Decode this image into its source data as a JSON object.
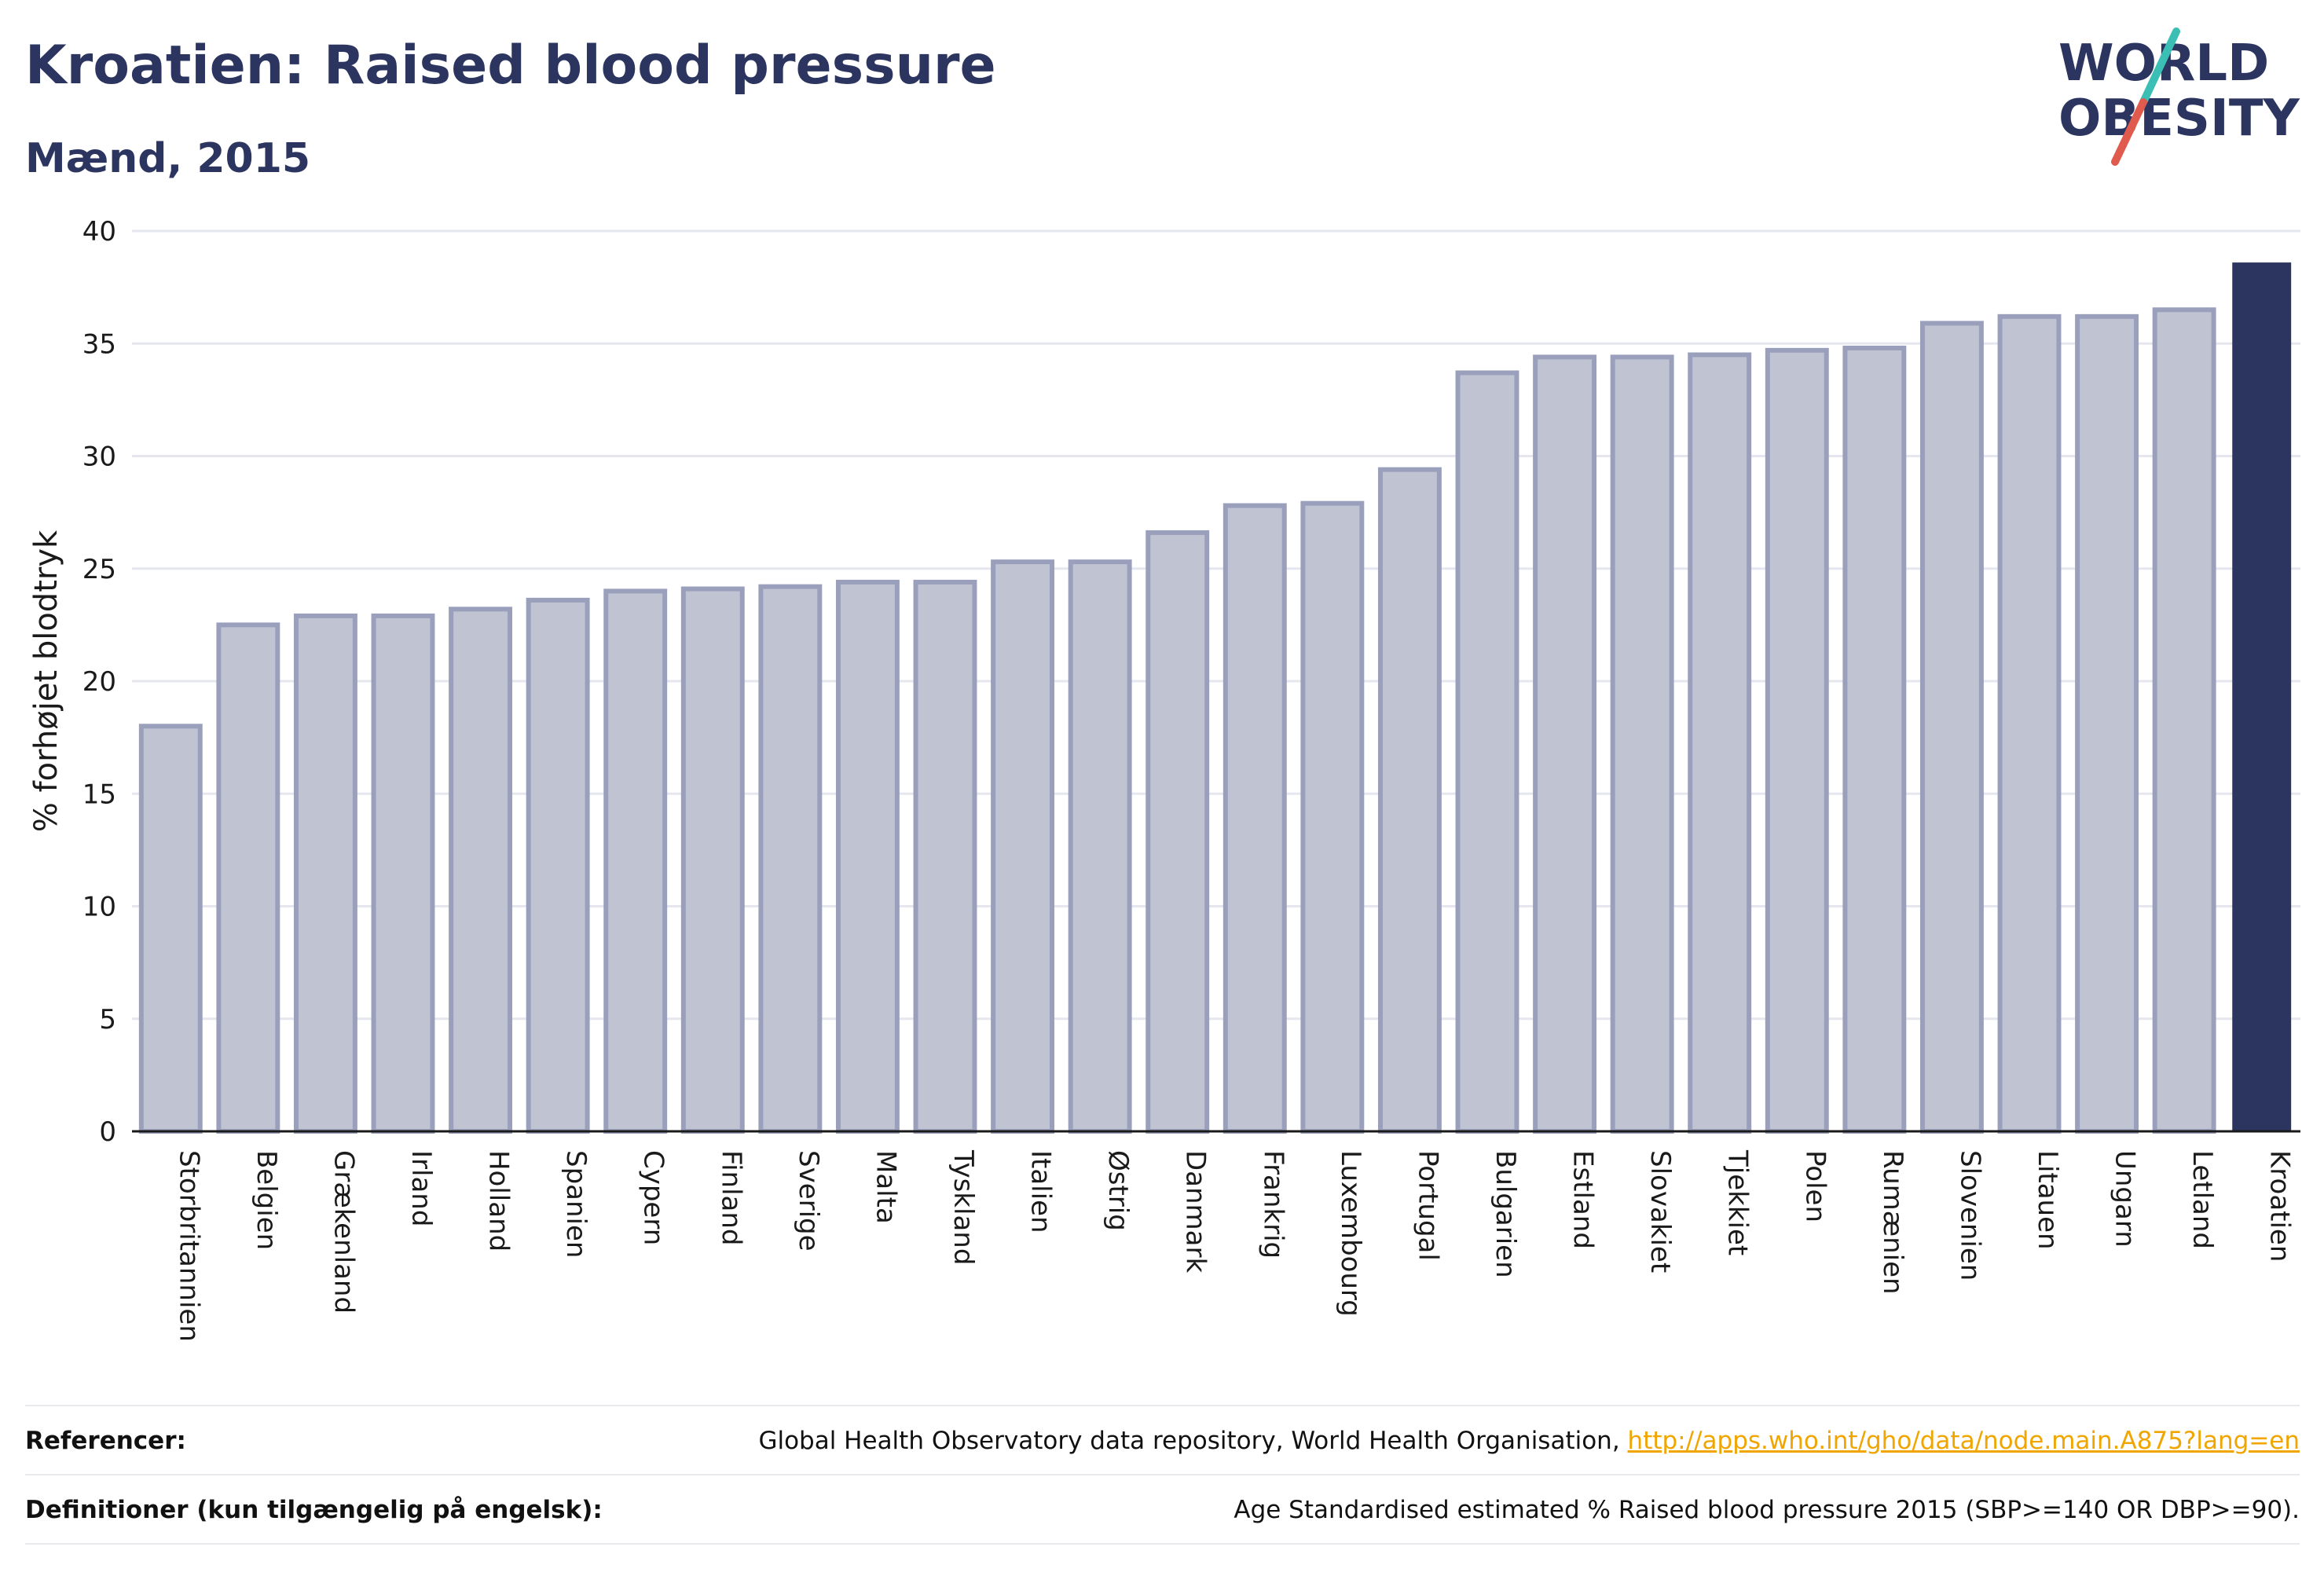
{
  "header": {
    "title": "Kroatien: Raised blood pressure",
    "subtitle": "Mænd, 2015"
  },
  "logo": {
    "line1": "WORLD",
    "line2": "OBESITY",
    "colors": {
      "text": "#2b3560",
      "slash_red": "#e05a4e",
      "slash_teal": "#3bbfb5"
    }
  },
  "colors": {
    "bar_default": "#bfc3d2",
    "bar_default_stroke": "#9aa0bb",
    "bar_highlight": "#2b3560",
    "grid": "#e6e7ee",
    "axis": "#1a1a1a"
  },
  "chart_data": {
    "type": "bar",
    "title": "Kroatien: Raised blood pressure",
    "subtitle": "Mænd, 2015",
    "xlabel": "",
    "ylabel": "% forhøjet blodtryk",
    "ylim": [
      0,
      40
    ],
    "yticks": [
      0,
      5,
      10,
      15,
      20,
      25,
      30,
      35,
      40
    ],
    "grid": true,
    "highlight": "Kroatien",
    "categories": [
      "Storbritannien",
      "Belgien",
      "Grækenland",
      "Irland",
      "Holland",
      "Spanien",
      "Cypern",
      "Finland",
      "Sverige",
      "Malta",
      "Tyskland",
      "Italien",
      "Østrig",
      "Danmark",
      "Frankrig",
      "Luxembourg",
      "Portugal",
      "Bulgarien",
      "Estland",
      "Slovakiet",
      "Tjekkiet",
      "Polen",
      "Rumænien",
      "Slovenien",
      "Litauen",
      "Ungarn",
      "Letland",
      "Kroatien"
    ],
    "values": [
      18.0,
      22.5,
      22.9,
      22.9,
      23.2,
      23.6,
      24.0,
      24.1,
      24.2,
      24.4,
      24.4,
      25.3,
      25.3,
      26.6,
      27.8,
      27.9,
      29.4,
      33.7,
      34.4,
      34.4,
      34.5,
      34.7,
      34.8,
      35.9,
      36.2,
      36.2,
      36.5,
      38.6
    ]
  },
  "footer": {
    "references_label": "Referencer:",
    "references_text": "Global Health Observatory data repository, World Health Organisation, ",
    "references_link": "http://apps.who.int/gho/data/node.main.A875?lang=en",
    "definitions_label": "Definitioner (kun tilgængelig på engelsk):",
    "definitions_text": "Age Standardised estimated % Raised blood pressure 2015 (SBP>=140 OR DBP>=90)."
  }
}
